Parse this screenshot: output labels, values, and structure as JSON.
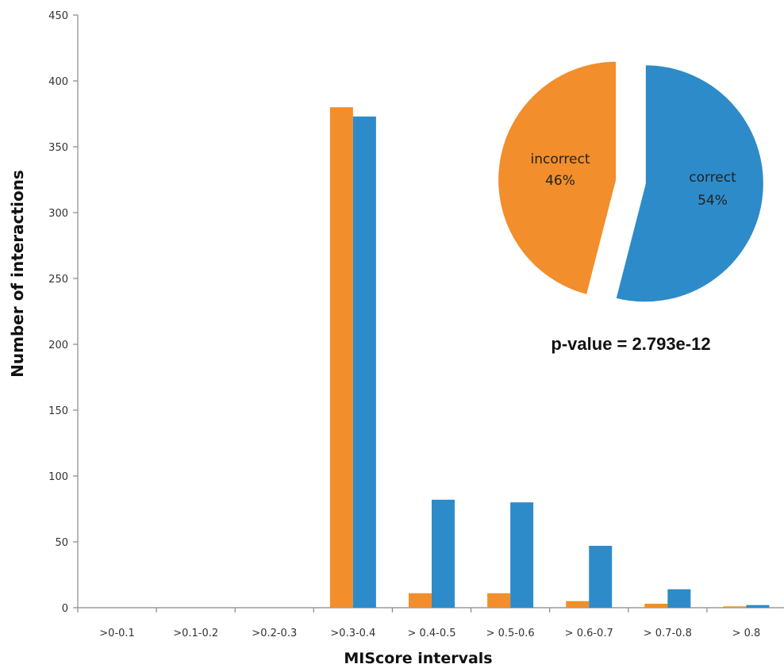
{
  "chart_data": [
    {
      "type": "bar",
      "xlabel": "MIScore intervals",
      "ylabel": "Number of interactions",
      "ylim": [
        0,
        450
      ],
      "yticks": [
        "0",
        "50",
        "100",
        "150",
        "200",
        "250",
        "300",
        "350",
        "400",
        "450"
      ],
      "categories": [
        ">0-0.1",
        ">0.1-0.2",
        ">0.2-0.3",
        ">0.3-0.4",
        "> 0.4-0.5",
        "> 0.5-0.6",
        "> 0.6-0.7",
        "> 0.7-0.8",
        "> 0.8"
      ],
      "series": [
        {
          "color": "#f28e2b",
          "values": [
            0,
            0,
            0,
            380,
            11,
            11,
            5,
            3,
            1
          ]
        },
        {
          "color": "#2e8bc9",
          "values": [
            0,
            0,
            0,
            373,
            82,
            80,
            47,
            14,
            2
          ]
        }
      ],
      "grid": false
    },
    {
      "type": "pie",
      "slices": [
        {
          "label": "incorrect",
          "percent_label": "46%",
          "value": 46,
          "color": "#f28e2b"
        },
        {
          "label": "correct",
          "percent_label": "54%",
          "value": 54,
          "color": "#2e8bc9"
        }
      ],
      "annotation": "p-value = 2.793e-12"
    }
  ]
}
